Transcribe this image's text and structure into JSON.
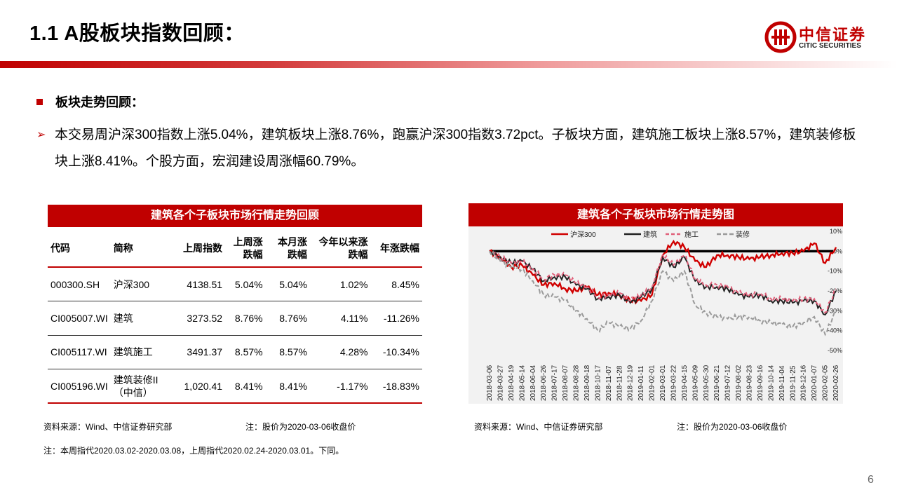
{
  "slide": {
    "title": "1.1 A股板块指数回顾：",
    "page_number": "6",
    "accent_color": "#c00000"
  },
  "logo": {
    "cn": "中信证券",
    "en": "CITIC SECURITIES"
  },
  "section": {
    "heading": "板块走势回顾：",
    "paragraph": "本交易周沪深300指数上涨5.04%，建筑板块上涨8.76%，跑赢沪深300指数3.72pct。子板块方面，建筑施工板块上涨8.57%，建筑装修板块上涨8.41%。个股方面，宏润建设周涨幅60.79%。"
  },
  "table": {
    "title": "建筑各个子板块市场行情走势回顾",
    "headers": [
      "代码",
      "简称",
      "上周指数",
      "上周涨跌幅",
      "本月涨跌幅",
      "今年以来涨跌幅",
      "年涨跌幅"
    ],
    "rows": [
      [
        "000300.SH",
        "沪深300",
        "4138.51",
        "5.04%",
        "5.04%",
        "1.02%",
        "8.45%"
      ],
      [
        "CI005007.WI",
        "建筑",
        "3273.52",
        "8.76%",
        "8.76%",
        "4.11%",
        "-11.26%"
      ],
      [
        "CI005117.WI",
        "建筑施工",
        "3491.37",
        "8.57%",
        "8.57%",
        "4.28%",
        "-10.34%"
      ],
      [
        "CI005196.WI",
        "建筑装修II（中信）",
        "1,020.41",
        "8.41%",
        "8.41%",
        "-1.17%",
        "-18.83%"
      ]
    ],
    "source": "资料来源：Wind、中信证券研究部",
    "note": "注：股价为2020-03-06收盘价"
  },
  "chart_data": {
    "type": "line",
    "title": "建筑各个子板块市场行情走势图",
    "ylim": [
      -50,
      10
    ],
    "y_ticks": [
      "10%",
      "0%",
      "-10%",
      "-20%",
      "-30%",
      "-40%",
      "-50%"
    ],
    "x": [
      "2018-03-06",
      "2018-03-27",
      "2018-04-19",
      "2018-05-14",
      "2018-06-04",
      "2018-06-26",
      "2018-07-17",
      "2018-08-07",
      "2018-08-28",
      "2018-09-18",
      "2018-10-17",
      "2018-11-07",
      "2018-11-28",
      "2018-12-19",
      "2019-01-11",
      "2019-02-01",
      "2019-03-01",
      "2019-03-22",
      "2019-04-15",
      "2019-05-09",
      "2019-05-30",
      "2019-06-21",
      "2019-07-12",
      "2019-08-02",
      "2019-08-23",
      "2019-09-16",
      "2019-10-14",
      "2019-11-04",
      "2019-11-25",
      "2019-12-16",
      "2020-01-07",
      "2020-02-05",
      "2020-02-26"
    ],
    "zero_line": 0,
    "legend_position": "top",
    "series": [
      {
        "name": "沪深300",
        "color": "#d00000",
        "dash": "",
        "values": [
          0,
          -3,
          -8,
          -7,
          -12,
          -17,
          -16,
          -19,
          -20,
          -18,
          -22,
          -21,
          -22,
          -25,
          -25,
          -22,
          -2,
          5,
          2,
          -5,
          -8,
          -2,
          -2,
          -3,
          -4,
          -3,
          -2,
          -1,
          -1,
          0,
          4,
          -6,
          2
        ]
      },
      {
        "name": "建筑",
        "color": "#222222",
        "dash": "",
        "values": [
          0,
          -3,
          -6,
          -5,
          -9,
          -15,
          -13,
          -13,
          -17,
          -19,
          -24,
          -23,
          -22,
          -26,
          -23,
          -19,
          -3,
          -8,
          -3,
          -15,
          -18,
          -18,
          -19,
          -22,
          -23,
          -22,
          -25,
          -25,
          -26,
          -25,
          -25,
          -32,
          -20
        ]
      },
      {
        "name": "施工",
        "color": "#e0607a",
        "dash": "5,3",
        "values": [
          0,
          -3,
          -6,
          -5,
          -9,
          -14,
          -12,
          -12,
          -16,
          -18,
          -23,
          -22,
          -21,
          -25,
          -22,
          -18,
          -2,
          -7,
          -2,
          -14,
          -17,
          -17,
          -18,
          -21,
          -22,
          -21,
          -24,
          -24,
          -25,
          -24,
          -24,
          -31,
          -19
        ]
      },
      {
        "name": "装修",
        "color": "#9a9a9a",
        "dash": "6,3",
        "values": [
          0,
          -5,
          -8,
          -9,
          -15,
          -22,
          -23,
          -25,
          -30,
          -34,
          -40,
          -36,
          -38,
          -39,
          -35,
          -25,
          -10,
          -15,
          -10,
          -27,
          -31,
          -33,
          -34,
          -33,
          -33,
          -35,
          -36,
          -37,
          -38,
          -36,
          -33,
          -42,
          -30
        ]
      }
    ],
    "source": "资料来源：Wind、中信证券研究部",
    "note": "注：股价为2020-03-06收盘价"
  },
  "footnote": "注：本周指代2020.03.02-2020.03.08，上周指代2020.02.24-2020.03.01。下同。"
}
